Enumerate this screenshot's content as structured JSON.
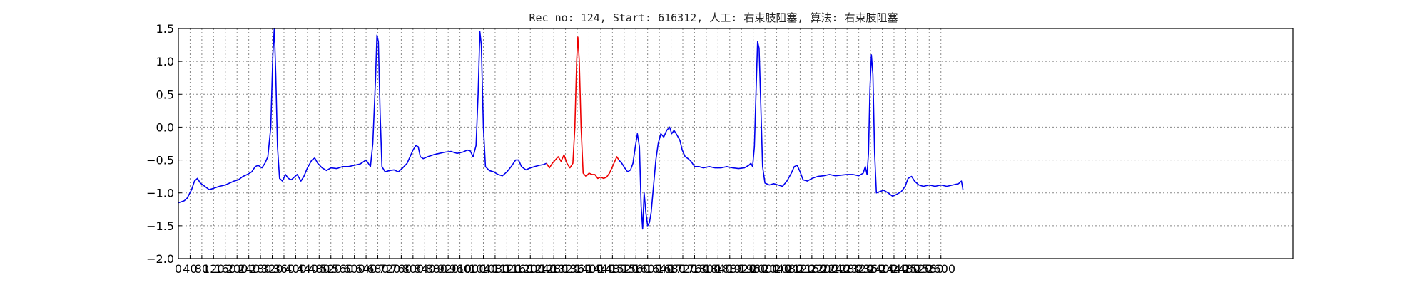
{
  "chart_data": {
    "type": "line",
    "title": "Rec_no: 124, Start: 616312, 人工: 右束肢阻塞, 算法: 右束肢阻塞",
    "xlabel": "",
    "ylabel": "",
    "xlim": [
      0,
      3800
    ],
    "ylim": [
      -2.0,
      1.5
    ],
    "grid": true,
    "x_ticks": [
      0,
      40,
      80,
      120,
      160,
      200,
      240,
      280,
      320,
      360,
      400,
      440,
      480,
      520,
      560,
      600,
      640,
      680,
      720,
      760,
      800,
      840,
      880,
      920,
      960,
      1000,
      1040,
      1080,
      1120,
      1160,
      1200,
      1240,
      1280,
      1320,
      1360,
      1400,
      1440,
      1480,
      1520,
      1560,
      1600,
      1640,
      1680,
      1720,
      1760,
      1800,
      1840,
      1880,
      1920,
      1960,
      2000,
      2040,
      2080,
      2120,
      2160,
      2200,
      2240,
      2280,
      2320,
      2360,
      2400,
      2440,
      2480,
      2520,
      2560,
      2600
    ],
    "y_ticks": [
      -2.0,
      -1.5,
      -1.0,
      -0.5,
      0.0,
      0.5,
      1.0,
      1.5
    ],
    "y_tick_labels": [
      "−2.0",
      "−1.5",
      "−1.0",
      "−0.5",
      "0.0",
      "0.5",
      "1.0",
      "1.5"
    ],
    "series": [
      {
        "color": "#0000ee",
        "points": [
          [
            0,
            -1.15
          ],
          [
            20,
            -1.12
          ],
          [
            30,
            -1.08
          ],
          [
            45,
            -0.95
          ],
          [
            55,
            -0.82
          ],
          [
            65,
            -0.78
          ],
          [
            75,
            -0.85
          ],
          [
            90,
            -0.9
          ],
          [
            105,
            -0.95
          ],
          [
            120,
            -0.93
          ],
          [
            140,
            -0.9
          ],
          [
            160,
            -0.88
          ],
          [
            175,
            -0.85
          ],
          [
            190,
            -0.82
          ],
          [
            205,
            -0.8
          ],
          [
            220,
            -0.75
          ],
          [
            235,
            -0.72
          ],
          [
            250,
            -0.68
          ],
          [
            262,
            -0.6
          ],
          [
            272,
            -0.58
          ],
          [
            285,
            -0.62
          ],
          [
            295,
            -0.55
          ],
          [
            305,
            -0.45
          ],
          [
            315,
            0.0
          ],
          [
            322,
            1.1
          ],
          [
            327,
            1.5
          ],
          [
            332,
            0.8
          ],
          [
            338,
            -0.3
          ],
          [
            345,
            -0.78
          ],
          [
            355,
            -0.82
          ],
          [
            365,
            -0.72
          ],
          [
            375,
            -0.78
          ],
          [
            385,
            -0.8
          ],
          [
            395,
            -0.76
          ],
          [
            405,
            -0.72
          ],
          [
            418,
            -0.82
          ],
          [
            428,
            -0.75
          ],
          [
            440,
            -0.62
          ],
          [
            455,
            -0.5
          ],
          [
            465,
            -0.47
          ],
          [
            475,
            -0.55
          ],
          [
            490,
            -0.62
          ],
          [
            505,
            -0.66
          ],
          [
            520,
            -0.62
          ],
          [
            540,
            -0.63
          ],
          [
            560,
            -0.6
          ],
          [
            580,
            -0.6
          ],
          [
            600,
            -0.58
          ],
          [
            620,
            -0.56
          ],
          [
            640,
            -0.5
          ],
          [
            655,
            -0.6
          ],
          [
            663,
            -0.25
          ],
          [
            672,
            0.7
          ],
          [
            677,
            1.4
          ],
          [
            682,
            1.3
          ],
          [
            688,
            0.2
          ],
          [
            694,
            -0.6
          ],
          [
            705,
            -0.68
          ],
          [
            720,
            -0.66
          ],
          [
            735,
            -0.65
          ],
          [
            750,
            -0.68
          ],
          [
            765,
            -0.62
          ],
          [
            780,
            -0.55
          ],
          [
            790,
            -0.45
          ],
          [
            800,
            -0.35
          ],
          [
            810,
            -0.28
          ],
          [
            818,
            -0.3
          ],
          [
            825,
            -0.45
          ],
          [
            835,
            -0.48
          ],
          [
            850,
            -0.45
          ],
          [
            870,
            -0.42
          ],
          [
            890,
            -0.4
          ],
          [
            910,
            -0.38
          ],
          [
            930,
            -0.37
          ],
          [
            950,
            -0.4
          ],
          [
            970,
            -0.38
          ],
          [
            985,
            -0.35
          ],
          [
            995,
            -0.36
          ],
          [
            1005,
            -0.45
          ],
          [
            1015,
            -0.28
          ],
          [
            1022,
            0.5
          ],
          [
            1028,
            1.45
          ],
          [
            1033,
            1.25
          ],
          [
            1040,
            0.0
          ],
          [
            1047,
            -0.6
          ],
          [
            1060,
            -0.66
          ],
          [
            1075,
            -0.68
          ],
          [
            1090,
            -0.72
          ],
          [
            1105,
            -0.74
          ],
          [
            1120,
            -0.68
          ],
          [
            1135,
            -0.6
          ],
          [
            1150,
            -0.5
          ],
          [
            1160,
            -0.5
          ],
          [
            1170,
            -0.6
          ],
          [
            1185,
            -0.65
          ],
          [
            1200,
            -0.62
          ],
          [
            1215,
            -0.6
          ],
          [
            1230,
            -0.58
          ],
          [
            1245,
            -0.57
          ],
          [
            1255,
            -0.55
          ]
        ]
      },
      {
        "color": "#ee0000",
        "points": [
          [
            1255,
            -0.55
          ],
          [
            1265,
            -0.62
          ],
          [
            1275,
            -0.55
          ],
          [
            1285,
            -0.5
          ],
          [
            1295,
            -0.45
          ],
          [
            1305,
            -0.52
          ],
          [
            1315,
            -0.42
          ],
          [
            1325,
            -0.55
          ],
          [
            1335,
            -0.62
          ],
          [
            1345,
            -0.55
          ],
          [
            1352,
            0.0
          ],
          [
            1358,
            1.0
          ],
          [
            1362,
            1.37
          ],
          [
            1367,
            1.0
          ],
          [
            1373,
            0.0
          ],
          [
            1380,
            -0.7
          ],
          [
            1390,
            -0.75
          ],
          [
            1400,
            -0.7
          ],
          [
            1410,
            -0.72
          ],
          [
            1420,
            -0.72
          ],
          [
            1430,
            -0.78
          ],
          [
            1440,
            -0.76
          ],
          [
            1450,
            -0.78
          ],
          [
            1460,
            -0.76
          ],
          [
            1470,
            -0.7
          ],
          [
            1480,
            -0.6
          ],
          [
            1490,
            -0.5
          ],
          [
            1495,
            -0.45
          ],
          [
            1502,
            -0.5
          ]
        ]
      },
      {
        "color": "#0000ee",
        "points": [
          [
            1502,
            -0.5
          ],
          [
            1512,
            -0.55
          ],
          [
            1522,
            -0.62
          ],
          [
            1532,
            -0.68
          ],
          [
            1542,
            -0.65
          ],
          [
            1550,
            -0.55
          ],
          [
            1558,
            -0.3
          ],
          [
            1565,
            -0.1
          ],
          [
            1572,
            -0.3
          ],
          [
            1578,
            -1.2
          ],
          [
            1583,
            -1.55
          ],
          [
            1588,
            -1.0
          ],
          [
            1594,
            -1.3
          ],
          [
            1600,
            -1.5
          ],
          [
            1606,
            -1.45
          ],
          [
            1612,
            -1.3
          ],
          [
            1620,
            -0.9
          ],
          [
            1628,
            -0.5
          ],
          [
            1636,
            -0.25
          ],
          [
            1645,
            -0.1
          ],
          [
            1655,
            -0.15
          ],
          [
            1665,
            -0.05
          ],
          [
            1675,
            0.0
          ],
          [
            1682,
            -0.1
          ],
          [
            1690,
            -0.05
          ],
          [
            1700,
            -0.12
          ],
          [
            1710,
            -0.2
          ],
          [
            1718,
            -0.35
          ],
          [
            1728,
            -0.45
          ],
          [
            1738,
            -0.48
          ],
          [
            1748,
            -0.52
          ],
          [
            1760,
            -0.6
          ],
          [
            1775,
            -0.6
          ],
          [
            1790,
            -0.62
          ],
          [
            1810,
            -0.6
          ],
          [
            1830,
            -0.62
          ],
          [
            1850,
            -0.62
          ],
          [
            1870,
            -0.6
          ],
          [
            1890,
            -0.62
          ],
          [
            1910,
            -0.63
          ],
          [
            1930,
            -0.62
          ],
          [
            1945,
            -0.58
          ],
          [
            1952,
            -0.55
          ],
          [
            1958,
            -0.6
          ],
          [
            1964,
            -0.3
          ],
          [
            1970,
            0.6
          ],
          [
            1975,
            1.3
          ],
          [
            1980,
            1.2
          ],
          [
            1986,
            0.3
          ],
          [
            1992,
            -0.6
          ],
          [
            2000,
            -0.85
          ],
          [
            2015,
            -0.88
          ],
          [
            2030,
            -0.86
          ],
          [
            2045,
            -0.88
          ],
          [
            2060,
            -0.9
          ],
          [
            2075,
            -0.82
          ],
          [
            2090,
            -0.7
          ],
          [
            2100,
            -0.6
          ],
          [
            2110,
            -0.58
          ],
          [
            2120,
            -0.68
          ],
          [
            2130,
            -0.8
          ],
          [
            2145,
            -0.82
          ],
          [
            2160,
            -0.78
          ],
          [
            2180,
            -0.75
          ],
          [
            2200,
            -0.74
          ],
          [
            2220,
            -0.72
          ],
          [
            2240,
            -0.74
          ],
          [
            2260,
            -0.73
          ],
          [
            2280,
            -0.72
          ],
          [
            2300,
            -0.72
          ],
          [
            2320,
            -0.74
          ],
          [
            2335,
            -0.7
          ],
          [
            2342,
            -0.6
          ],
          [
            2348,
            -0.72
          ],
          [
            2353,
            -0.4
          ],
          [
            2358,
            0.6
          ],
          [
            2363,
            1.1
          ],
          [
            2368,
            0.8
          ],
          [
            2374,
            -0.4
          ],
          [
            2380,
            -1.0
          ],
          [
            2392,
            -0.98
          ],
          [
            2405,
            -0.96
          ],
          [
            2420,
            -1.0
          ],
          [
            2435,
            -1.05
          ],
          [
            2450,
            -1.02
          ],
          [
            2465,
            -0.98
          ],
          [
            2478,
            -0.9
          ],
          [
            2488,
            -0.78
          ],
          [
            2500,
            -0.75
          ],
          [
            2510,
            -0.82
          ],
          [
            2525,
            -0.88
          ],
          [
            2540,
            -0.9
          ],
          [
            2560,
            -0.88
          ],
          [
            2580,
            -0.9
          ],
          [
            2600,
            -0.88
          ],
          [
            2620,
            -0.9
          ],
          [
            2640,
            -0.88
          ],
          [
            2660,
            -0.86
          ],
          [
            2670,
            -0.82
          ],
          [
            2675,
            -0.95
          ]
        ]
      }
    ]
  }
}
